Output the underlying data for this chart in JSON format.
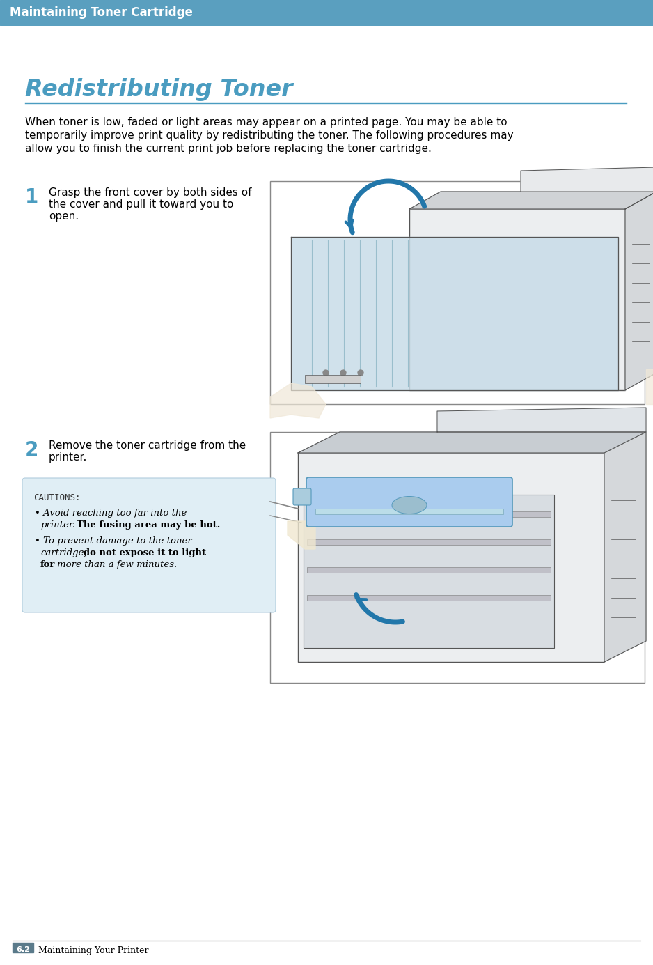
{
  "header_bg_color": "#5A9FBF",
  "header_text": "Maintaining Toner Cartridge",
  "header_text_color": "#FFFFFF",
  "header_font_size": 12,
  "page_bg_color": "#FFFFFF",
  "section_title": "Redistributing Toner",
  "section_title_color": "#4A9CC0",
  "section_title_font_size": 24,
  "section_line_color": "#4A9CC0",
  "body_text_line1": "When toner is low, faded or light areas may appear on a printed page. You may be able to",
  "body_text_line2": "temporarily improve print quality by redistributing the toner. The following procedures may",
  "body_text_line3": "allow you to finish the current print job before replacing the toner cartridge.",
  "body_font_size": 11,
  "body_color": "#000000",
  "step1_number": "1",
  "step1_text_line1": "Grasp the front cover by both sides of",
  "step1_text_line2": "the cover and pull it toward you to",
  "step1_text_line3": "open.",
  "step2_number": "2",
  "step2_text_line1": "Remove the toner cartridge from the",
  "step2_text_line2": "printer.",
  "step_number_color": "#4A9CC0",
  "step_number_font_size": 20,
  "step_text_font_size": 11,
  "caution_bg_color": "#E0EEF5",
  "caution_border_color": "#B0CCDD",
  "caution_label": "CAUTIONS:",
  "caution_font_size": 9.5,
  "footer_number_bg": "#5A7A8A",
  "footer_number_text": "6.2",
  "footer_text": "Maintaining Your Printer",
  "footer_font_size": 9,
  "footer_line_color": "#000000",
  "img_border_color": "#888888",
  "img_bg_color": "#FFFFFF",
  "printer_body_color": "#E8ECEF",
  "printer_line_color": "#555555",
  "printer_blue_color": "#AACCEE",
  "arrow_color": "#2277AA"
}
